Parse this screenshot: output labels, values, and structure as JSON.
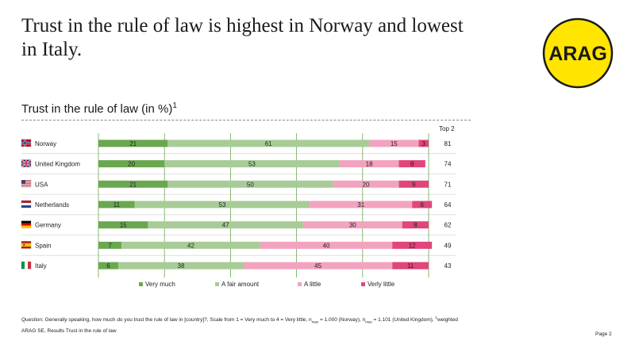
{
  "headline": "Trust in the rule of law is highest in Norway and lowest in Italy.",
  "logo_text": "ARAG",
  "subtitle": "Trust in the rule of law (in %)",
  "subtitle_sup": "1",
  "top2_header": "Top 2",
  "colors": {
    "very_much": "#6aa84f",
    "fair_amount": "#a8cc97",
    "a_little": "#f2a3bf",
    "very_little": "#e0457b",
    "logo_yellow": "#ffe500"
  },
  "chart_data": {
    "type": "bar",
    "orientation": "horizontal",
    "stacked": true,
    "categories": [
      "Norway",
      "United Kingdom",
      "USA",
      "Netherlands",
      "Germany",
      "Spain",
      "Italy"
    ],
    "series": [
      {
        "name": "Very much",
        "values": [
          21,
          20,
          21,
          11,
          15,
          7,
          6
        ]
      },
      {
        "name": "A fair amount",
        "values": [
          61,
          53,
          50,
          53,
          47,
          42,
          38
        ]
      },
      {
        "name": "A little",
        "values": [
          15,
          18,
          20,
          31,
          30,
          40,
          45
        ]
      },
      {
        "name": "Verly little",
        "values": [
          3,
          8,
          9,
          6,
          8,
          12,
          11
        ]
      }
    ],
    "top2": [
      81,
      74,
      71,
      64,
      62,
      49,
      43
    ],
    "flags": [
      "norway-flag-icon",
      "uk-flag-icon",
      "usa-flag-icon",
      "netherlands-flag-icon",
      "germany-flag-icon",
      "spain-flag-icon",
      "italy-flag-icon"
    ],
    "xlim": [
      0,
      100
    ],
    "legend_position": "bottom"
  },
  "legend": [
    "Very much",
    "A fair amount",
    "A little",
    "Verly little"
  ],
  "note": {
    "part1": "Question: Generally speaking, how much do you trust the rule of law in [country]?, Scale from 1 = Very much to 4 = Very little, n",
    "sub1": "max",
    "part2": " = 1.000 (Norway), n",
    "sub2": "max",
    "part3": " = 1.101 (United Kingdom), ",
    "sup": "1",
    "part4": "weighted"
  },
  "source": "ARAG SE, Results Trust in the rule of law",
  "page_label": "Page 2"
}
